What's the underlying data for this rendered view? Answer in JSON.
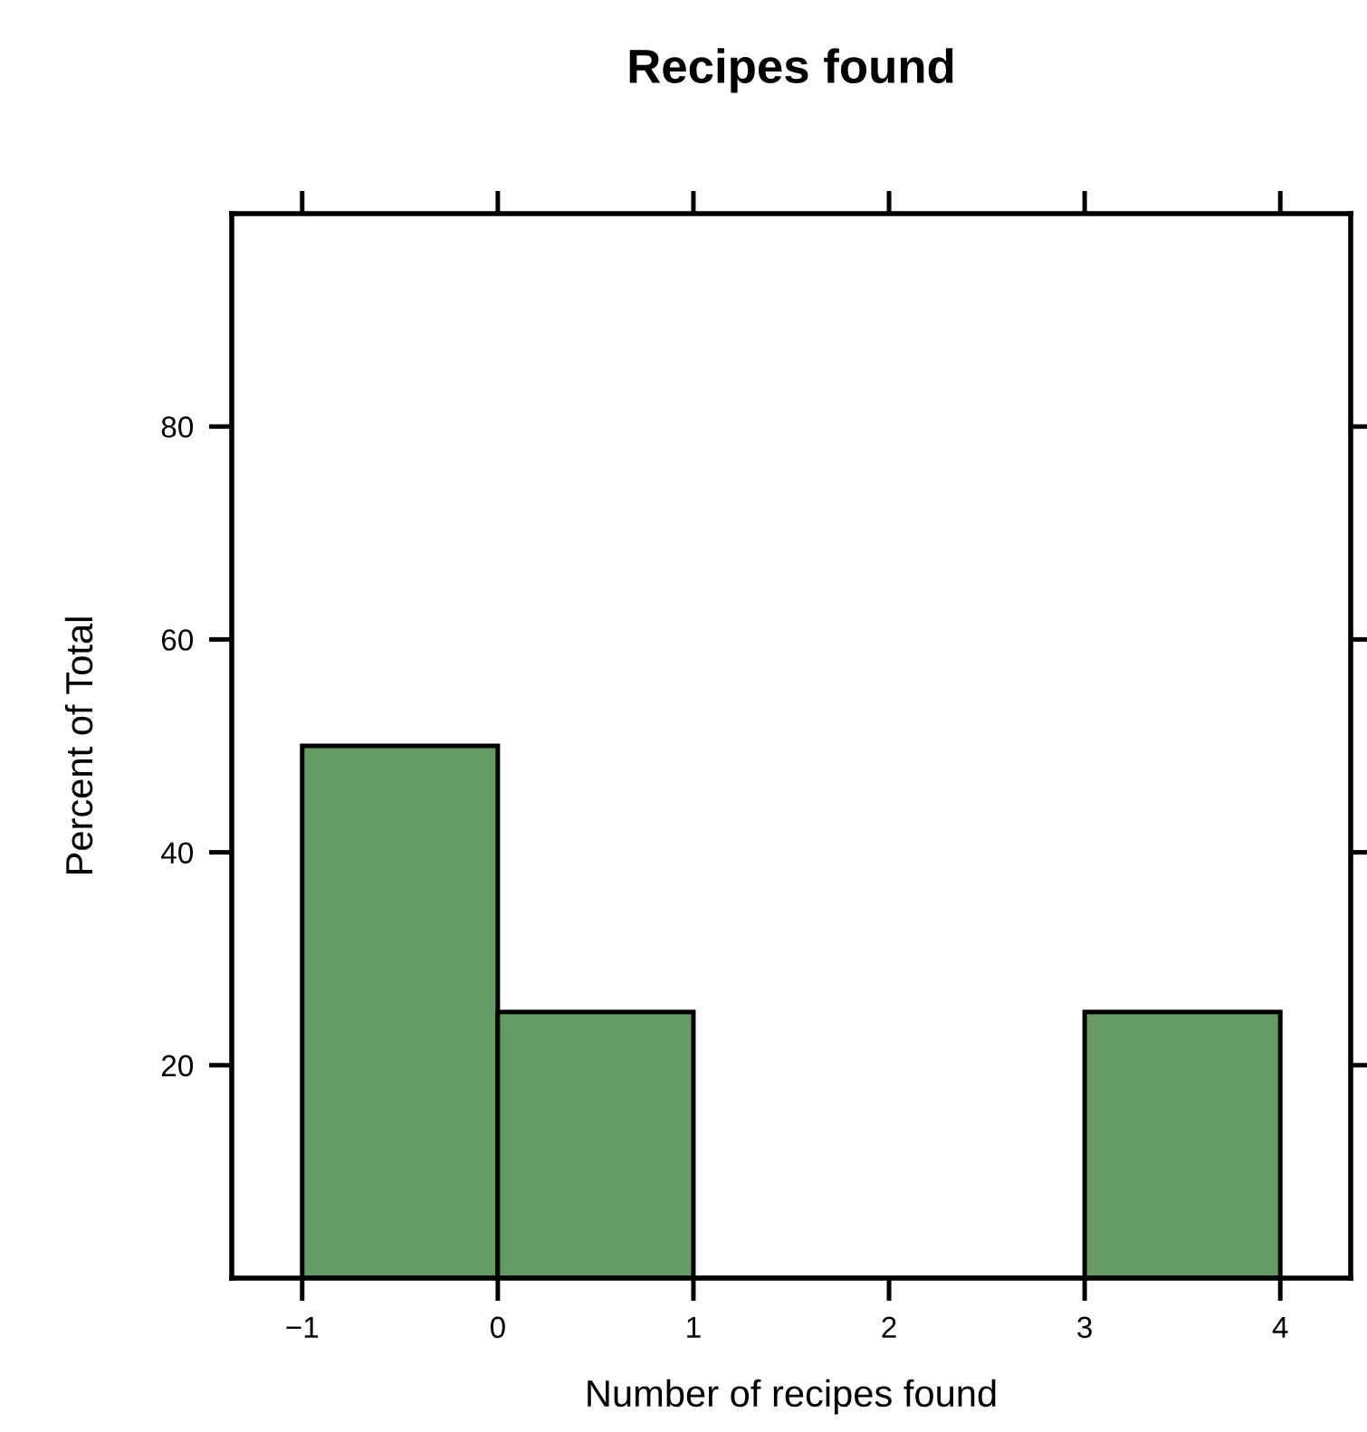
{
  "chart_data": {
    "type": "histogram",
    "title": "Recipes found",
    "xlabel": "Number of recipes found",
    "ylabel": "Percent of Total",
    "bins": [
      -1,
      0,
      1,
      2,
      3,
      4
    ],
    "values": [
      50,
      25,
      0,
      0,
      25
    ],
    "color": "#659c64",
    "xlim": [
      -1.36,
      4.36
    ],
    "ylim": [
      0,
      100
    ],
    "xticks": [
      {
        "value": -1,
        "label": "−1"
      },
      0,
      1,
      2,
      3,
      4
    ],
    "yticks": [
      20,
      40,
      60,
      80
    ],
    "grid": false,
    "legend": false
  }
}
